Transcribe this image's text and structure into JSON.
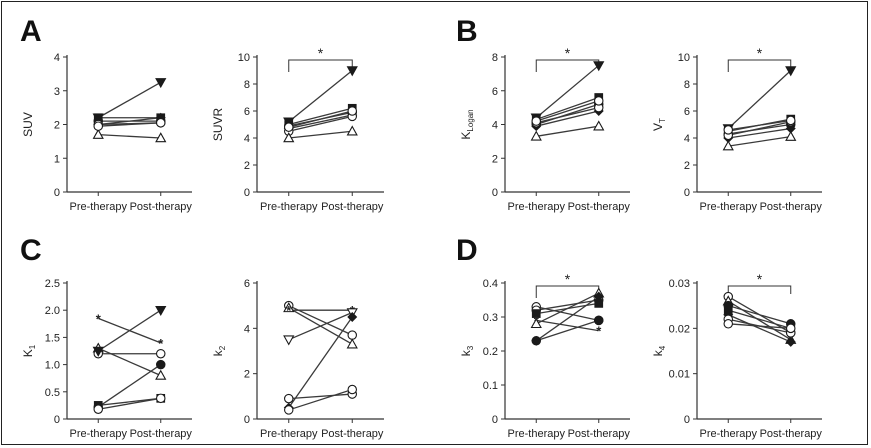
{
  "panels": [
    {
      "letter": "A"
    },
    {
      "letter": "B"
    },
    {
      "letter": "C"
    },
    {
      "letter": "D"
    }
  ],
  "chart_data": [
    {
      "type": "line",
      "panel": "A",
      "ylabel": "SUV",
      "ylabel_sub": "",
      "categories": [
        "Pre-therapy",
        "Post-therapy"
      ],
      "ylim": [
        0,
        4
      ],
      "yticks": [
        "0",
        "1",
        "2",
        "3",
        "4"
      ],
      "significance": "",
      "series": [
        {
          "marker": "triangle-down",
          "values": [
            2.2,
            3.25
          ]
        },
        {
          "marker": "square",
          "values": [
            2.2,
            2.2
          ]
        },
        {
          "marker": "circle",
          "values": [
            2.1,
            2.1
          ]
        },
        {
          "marker": "diamond",
          "values": [
            2.0,
            2.2
          ]
        },
        {
          "marker": "circle-open",
          "values": [
            2.0,
            2.05
          ]
        },
        {
          "marker": "triangle-up-open",
          "values": [
            1.7,
            1.6
          ]
        },
        {
          "marker": "circle-open",
          "values": [
            1.95,
            2.05
          ]
        }
      ]
    },
    {
      "type": "line",
      "panel": "A",
      "ylabel": "SUVR",
      "ylabel_sub": "",
      "categories": [
        "Pre-therapy",
        "Post-therapy"
      ],
      "ylim": [
        0,
        10
      ],
      "yticks": [
        "0",
        "2",
        "4",
        "6",
        "8",
        "10"
      ],
      "significance": "*",
      "series": [
        {
          "marker": "triangle-down",
          "values": [
            5.2,
            9.0
          ]
        },
        {
          "marker": "square",
          "values": [
            5.0,
            6.2
          ]
        },
        {
          "marker": "circle",
          "values": [
            4.9,
            5.9
          ]
        },
        {
          "marker": "diamond",
          "values": [
            4.7,
            5.7
          ]
        },
        {
          "marker": "circle-open",
          "values": [
            4.5,
            5.6
          ]
        },
        {
          "marker": "triangle-up-open",
          "values": [
            4.0,
            4.5
          ]
        },
        {
          "marker": "circle-open",
          "values": [
            4.8,
            6.0
          ]
        }
      ]
    },
    {
      "type": "line",
      "panel": "B",
      "ylabel": "K",
      "ylabel_sub": "Logan",
      "categories": [
        "Pre-therapy",
        "Post-therapy"
      ],
      "ylim": [
        0,
        8
      ],
      "yticks": [
        "0",
        "2",
        "4",
        "6",
        "8"
      ],
      "significance": "*",
      "series": [
        {
          "marker": "triangle-down",
          "values": [
            4.4,
            7.5
          ]
        },
        {
          "marker": "square",
          "values": [
            4.3,
            5.6
          ]
        },
        {
          "marker": "circle",
          "values": [
            4.0,
            5.2
          ]
        },
        {
          "marker": "diamond",
          "values": [
            3.9,
            4.8
          ]
        },
        {
          "marker": "circle-open",
          "values": [
            4.1,
            5.0
          ]
        },
        {
          "marker": "triangle-up-open",
          "values": [
            3.3,
            3.9
          ]
        },
        {
          "marker": "circle-open",
          "values": [
            4.2,
            5.4
          ]
        }
      ]
    },
    {
      "type": "line",
      "panel": "B",
      "ylabel": "V",
      "ylabel_sub": "T",
      "categories": [
        "Pre-therapy",
        "Post-therapy"
      ],
      "ylim": [
        0,
        10
      ],
      "yticks": [
        "0",
        "2",
        "4",
        "6",
        "8",
        "10"
      ],
      "significance": "*",
      "series": [
        {
          "marker": "triangle-down",
          "values": [
            4.7,
            9.0
          ]
        },
        {
          "marker": "square",
          "values": [
            4.5,
            5.4
          ]
        },
        {
          "marker": "circle",
          "values": [
            4.3,
            5.0
          ]
        },
        {
          "marker": "diamond",
          "values": [
            4.0,
            4.7
          ]
        },
        {
          "marker": "circle-open",
          "values": [
            4.2,
            5.2
          ]
        },
        {
          "marker": "triangle-up-open",
          "values": [
            3.4,
            4.1
          ]
        },
        {
          "marker": "circle-open",
          "values": [
            4.6,
            5.3
          ]
        }
      ]
    },
    {
      "type": "line",
      "panel": "C",
      "ylabel": "K",
      "ylabel_sub": "1",
      "categories": [
        "Pre-therapy",
        "Post-therapy"
      ],
      "ylim": [
        0,
        2.5
      ],
      "yticks": [
        "0",
        "0.5",
        "1.0",
        "1.5",
        "2.0",
        "2.5"
      ],
      "significance": "",
      "series": [
        {
          "marker": "asterisk",
          "values": [
            1.85,
            1.4
          ]
        },
        {
          "marker": "triangle-up-open",
          "values": [
            1.3,
            0.8
          ]
        },
        {
          "marker": "circle-open",
          "values": [
            1.2,
            1.2
          ]
        },
        {
          "marker": "triangle-down",
          "values": [
            1.25,
            2.0
          ]
        },
        {
          "marker": "circle",
          "values": [
            0.22,
            1.0
          ]
        },
        {
          "marker": "square",
          "values": [
            0.25,
            0.38
          ]
        },
        {
          "marker": "circle-open",
          "values": [
            0.18,
            0.38
          ]
        }
      ]
    },
    {
      "type": "line",
      "panel": "C",
      "ylabel": "k",
      "ylabel_sub": "2",
      "categories": [
        "Pre-therapy",
        "Post-therapy"
      ],
      "ylim": [
        0,
        6
      ],
      "yticks": [
        "0",
        "2",
        "4",
        "6"
      ],
      "significance": "",
      "series": [
        {
          "marker": "circle-open",
          "values": [
            5.0,
            3.7
          ]
        },
        {
          "marker": "triangle-up-open",
          "values": [
            4.9,
            3.3
          ]
        },
        {
          "marker": "asterisk",
          "values": [
            4.8,
            4.8
          ]
        },
        {
          "marker": "triangle-down-open",
          "values": [
            3.5,
            4.7
          ]
        },
        {
          "marker": "circle-open",
          "values": [
            0.9,
            1.1
          ]
        },
        {
          "marker": "diamond",
          "values": [
            0.5,
            4.5
          ]
        },
        {
          "marker": "circle-open",
          "values": [
            0.4,
            1.3
          ]
        }
      ]
    },
    {
      "type": "line",
      "panel": "D",
      "ylabel": "k",
      "ylabel_sub": "3",
      "categories": [
        "Pre-therapy",
        "Post-therapy"
      ],
      "ylim": [
        0,
        0.4
      ],
      "yticks": [
        "0",
        "0.1",
        "0.2",
        "0.3",
        "0.4"
      ],
      "significance": "*",
      "series": [
        {
          "marker": "circle-open",
          "values": [
            0.33,
            0.29
          ]
        },
        {
          "marker": "circle-open",
          "values": [
            0.32,
            0.35
          ]
        },
        {
          "marker": "square",
          "values": [
            0.31,
            0.34
          ]
        },
        {
          "marker": "triangle-up-open",
          "values": [
            0.28,
            0.37
          ]
        },
        {
          "marker": "asterisk",
          "values": [
            0.29,
            0.26
          ]
        },
        {
          "marker": "diamond",
          "values": [
            0.23,
            0.36
          ]
        },
        {
          "marker": "circle",
          "values": [
            0.23,
            0.29
          ]
        }
      ]
    },
    {
      "type": "line",
      "panel": "D",
      "ylabel": "k",
      "ylabel_sub": "4",
      "categories": [
        "Pre-therapy",
        "Post-therapy"
      ],
      "ylim": [
        0,
        0.03
      ],
      "yticks": [
        "0",
        "0.01",
        "0.02",
        "0.03"
      ],
      "significance": "*",
      "series": [
        {
          "marker": "circle-open",
          "values": [
            0.027,
            0.019
          ]
        },
        {
          "marker": "triangle-up-open",
          "values": [
            0.026,
            0.0175
          ]
        },
        {
          "marker": "circle",
          "values": [
            0.025,
            0.021
          ]
        },
        {
          "marker": "square",
          "values": [
            0.024,
            0.02
          ]
        },
        {
          "marker": "diamond",
          "values": [
            0.023,
            0.017
          ]
        },
        {
          "marker": "circle-open",
          "values": [
            0.022,
            0.019
          ]
        },
        {
          "marker": "circle-open",
          "values": [
            0.021,
            0.02
          ]
        }
      ]
    }
  ]
}
